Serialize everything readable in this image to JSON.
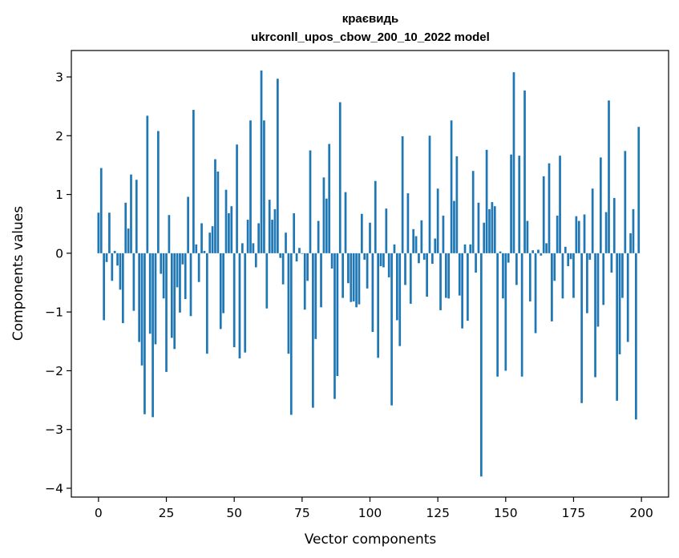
{
  "chart_data": {
    "type": "bar",
    "title": "краєвидь",
    "subtitle": "ukrconll_upos_cbow_200_10_2022 model",
    "xlabel": "Vector components",
    "ylabel": "Components values",
    "xlim": [
      -10,
      210
    ],
    "ylim": [
      -4.15,
      3.45
    ],
    "xticks": [
      0,
      25,
      50,
      75,
      100,
      125,
      150,
      175,
      200
    ],
    "yticks": [
      -4,
      -3,
      -2,
      -1,
      0,
      1,
      2,
      3
    ],
    "ytick_labels": [
      "−4",
      "−3",
      "−2",
      "−1",
      "0",
      "1",
      "2",
      "3"
    ],
    "grid": false,
    "bar_color": "#1f77b4",
    "x": [
      0,
      1,
      2,
      3,
      4,
      5,
      6,
      7,
      8,
      9,
      10,
      11,
      12,
      13,
      14,
      15,
      16,
      17,
      18,
      19,
      20,
      21,
      22,
      23,
      24,
      25,
      26,
      27,
      28,
      29,
      30,
      31,
      32,
      33,
      34,
      35,
      36,
      37,
      38,
      39,
      40,
      41,
      42,
      43,
      44,
      45,
      46,
      47,
      48,
      49,
      50,
      51,
      52,
      53,
      54,
      55,
      56,
      57,
      58,
      59,
      60,
      61,
      62,
      63,
      64,
      65,
      66,
      67,
      68,
      69,
      70,
      71,
      72,
      73,
      74,
      75,
      76,
      77,
      78,
      79,
      80,
      81,
      82,
      83,
      84,
      85,
      86,
      87,
      88,
      89,
      90,
      91,
      92,
      93,
      94,
      95,
      96,
      97,
      98,
      99,
      100,
      101,
      102,
      103,
      104,
      105,
      106,
      107,
      108,
      109,
      110,
      111,
      112,
      113,
      114,
      115,
      116,
      117,
      118,
      119,
      120,
      121,
      122,
      123,
      124,
      125,
      126,
      127,
      128,
      129,
      130,
      131,
      132,
      133,
      134,
      135,
      136,
      137,
      138,
      139,
      140,
      141,
      142,
      143,
      144,
      145,
      146,
      147,
      148,
      149,
      150,
      151,
      152,
      153,
      154,
      155,
      156,
      157,
      158,
      159,
      160,
      161,
      162,
      163,
      164,
      165,
      166,
      167,
      168,
      169,
      170,
      171,
      172,
      173,
      174,
      175,
      176,
      177,
      178,
      179,
      180,
      181,
      182,
      183,
      184,
      185,
      186,
      187,
      188,
      189,
      190,
      191,
      192,
      193,
      194,
      195,
      196,
      197,
      198,
      199
    ],
    "values": [
      0.69,
      1.45,
      -1.14,
      -0.15,
      0.69,
      -0.47,
      0.04,
      -0.21,
      -0.62,
      -1.19,
      0.86,
      0.42,
      1.34,
      -0.98,
      1.25,
      -1.51,
      -1.91,
      -2.74,
      2.34,
      -1.37,
      -2.79,
      -1.55,
      2.08,
      -0.35,
      -0.77,
      -2.02,
      0.65,
      -1.44,
      -1.63,
      -0.58,
      -1.01,
      -0.19,
      -0.78,
      0.96,
      -1.07,
      2.44,
      0.15,
      -0.49,
      0.51,
      0.04,
      -1.71,
      0.35,
      0.46,
      1.6,
      1.39,
      -1.29,
      -1.02,
      1.08,
      0.68,
      0.8,
      -1.6,
      1.85,
      -1.79,
      0.17,
      -1.69,
      0.57,
      2.26,
      0.17,
      -0.24,
      0.51,
      3.11,
      2.26,
      -0.94,
      0.91,
      0.57,
      0.75,
      2.97,
      -0.08,
      -0.53,
      0.35,
      -1.71,
      -2.75,
      0.68,
      -0.14,
      0.09,
      -0.01,
      -0.96,
      -0.47,
      1.75,
      -2.63,
      -1.46,
      0.55,
      -0.92,
      1.29,
      0.93,
      1.86,
      -0.26,
      -2.48,
      -2.09,
      2.57,
      -0.76,
      1.04,
      -0.51,
      -0.83,
      -0.82,
      -0.92,
      -0.87,
      0.67,
      -0.11,
      -0.6,
      0.52,
      -1.34,
      1.23,
      -1.78,
      -0.22,
      -0.24,
      0.76,
      -0.41,
      -2.59,
      0.15,
      -1.14,
      -1.58,
      1.99,
      -0.54,
      1.02,
      -0.86,
      0.41,
      0.29,
      -0.17,
      0.56,
      -0.11,
      -0.74,
      2.0,
      -0.18,
      0.25,
      1.1,
      -0.97,
      0.64,
      -0.76,
      -0.77,
      2.26,
      0.89,
      1.65,
      -0.72,
      -1.28,
      0.15,
      -1.15,
      0.15,
      1.4,
      -0.33,
      0.86,
      -3.8,
      0.52,
      1.76,
      0.75,
      0.87,
      0.8,
      -2.1,
      0.03,
      -0.77,
      -2.0,
      -0.16,
      1.68,
      3.08,
      -0.54,
      1.66,
      -2.1,
      2.77,
      0.55,
      -0.82,
      0.05,
      -1.36,
      0.06,
      -0.04,
      1.31,
      0.17,
      1.53,
      -1.16,
      -0.47,
      0.64,
      1.66,
      -0.77,
      0.11,
      -0.22,
      -0.1,
      -0.76,
      0.63,
      0.55,
      -2.55,
      0.66,
      -1.02,
      -0.11,
      1.1,
      -2.11,
      -1.25,
      1.63,
      -0.88,
      0.7,
      2.6,
      -0.33,
      0.94,
      -2.51,
      -1.72,
      -0.76,
      1.74,
      -1.51,
      0.34,
      0.75,
      -2.83,
      2.15
    ]
  }
}
